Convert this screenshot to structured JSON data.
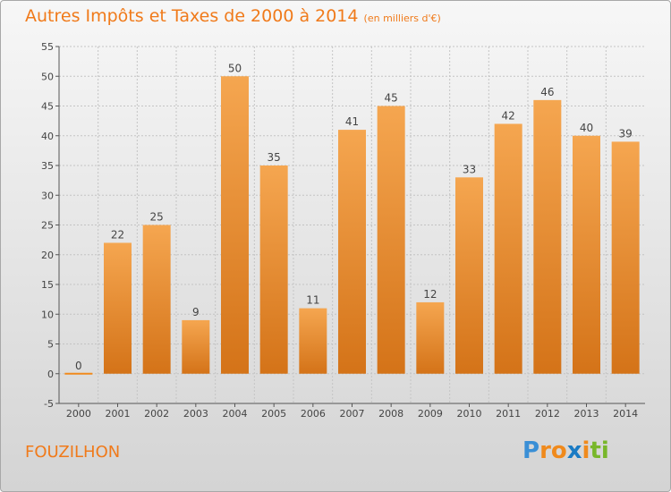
{
  "title": "Autres Impôts et Taxes de 2000 à 2014",
  "subtitle": "(en milliers d'€)",
  "commune": "FOUZILHON",
  "logo": {
    "letters": [
      "P",
      "r",
      "o",
      "x",
      "i",
      "t",
      "i"
    ],
    "colors": [
      "#3a8fd6",
      "#f08a1c",
      "#f08a1c",
      "#1a7bc4",
      "#f08a1c",
      "#78b72a",
      "#78b72a"
    ]
  },
  "colors": {
    "title": "#f07a1a",
    "bar": "#f0a048",
    "zero_line": "#f08a1c"
  },
  "chart_data": {
    "type": "bar",
    "categories": [
      "2000",
      "2001",
      "2002",
      "2003",
      "2004",
      "2005",
      "2006",
      "2007",
      "2008",
      "2009",
      "2010",
      "2011",
      "2012",
      "2013",
      "2014"
    ],
    "values": [
      0,
      22,
      25,
      9,
      50,
      35,
      11,
      41,
      45,
      12,
      33,
      42,
      46,
      40,
      39
    ],
    "ylim": [
      -5,
      55
    ],
    "yticks": [
      -5,
      0,
      5,
      10,
      15,
      20,
      25,
      30,
      35,
      40,
      45,
      50,
      55
    ],
    "grid": true,
    "title": "Autres Impôts et Taxes de 2000 à 2014",
    "ylabel": "",
    "xlabel": ""
  }
}
